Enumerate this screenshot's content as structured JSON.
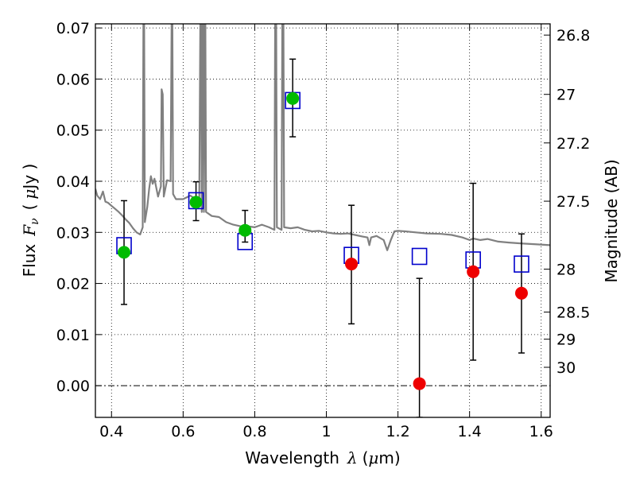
{
  "chart_data": {
    "type": "scatter",
    "title": "",
    "xlabel": {
      "prefix": "Wavelength",
      "symbol": "λ",
      "unit_open": "(",
      "unit_mu": "μ",
      "unit_rest": "m)"
    },
    "ylabel": {
      "prefix": "Flux",
      "symbol": "F",
      "subscript": "ν",
      "unit_open": "(",
      "unit_mu": "μ",
      "unit_rest": "Jy )"
    },
    "y2label": "Magnitude (AB)",
    "xlim": [
      0.355,
      1.625
    ],
    "ylim": [
      -0.0062,
      0.0708
    ],
    "grid": true,
    "x_ticks": [
      0.4,
      0.6,
      0.8,
      1.0,
      1.2,
      1.4,
      1.6
    ],
    "x_tick_labels": [
      "0.4",
      "0.6",
      "0.8",
      "1",
      "1.2",
      "1.4",
      "1.6"
    ],
    "y_ticks": [
      0.0,
      0.01,
      0.02,
      0.03,
      0.04,
      0.05,
      0.06,
      0.07
    ],
    "y_tick_labels": [
      "0.00",
      "0.01",
      "0.02",
      "0.03",
      "0.04",
      "0.05",
      "0.06",
      "0.07"
    ],
    "y2_ticks": [
      {
        "label": "26.8",
        "flux": 0.0686
      },
      {
        "label": "27",
        "flux": 0.057
      },
      {
        "label": "27.2",
        "flux": 0.0475
      },
      {
        "label": "27.5",
        "flux": 0.0361
      },
      {
        "label": "28",
        "flux": 0.0228
      },
      {
        "label": "28.5",
        "flux": 0.0144
      },
      {
        "label": "29",
        "flux": 0.0091
      },
      {
        "label": "30",
        "flux": 0.0036
      }
    ],
    "model_sed": {
      "color": "#808080",
      "points": [
        [
          0.355,
          0.0385
        ],
        [
          0.36,
          0.0372
        ],
        [
          0.368,
          0.0365
        ],
        [
          0.376,
          0.038
        ],
        [
          0.383,
          0.036
        ],
        [
          0.39,
          0.0358
        ],
        [
          0.4,
          0.0352
        ],
        [
          0.41,
          0.0346
        ],
        [
          0.42,
          0.034
        ],
        [
          0.43,
          0.0333
        ],
        [
          0.44,
          0.0325
        ],
        [
          0.45,
          0.0318
        ],
        [
          0.46,
          0.0308
        ],
        [
          0.47,
          0.03
        ],
        [
          0.48,
          0.0296
        ],
        [
          0.487,
          0.031
        ],
        [
          0.489,
          0.072
        ],
        [
          0.491,
          0.072
        ],
        [
          0.493,
          0.032
        ],
        [
          0.5,
          0.035
        ],
        [
          0.505,
          0.0385
        ],
        [
          0.51,
          0.041
        ],
        [
          0.515,
          0.0395
        ],
        [
          0.52,
          0.0405
        ],
        [
          0.53,
          0.037
        ],
        [
          0.538,
          0.039
        ],
        [
          0.54,
          0.058
        ],
        [
          0.543,
          0.057
        ],
        [
          0.546,
          0.037
        ],
        [
          0.555,
          0.0402
        ],
        [
          0.565,
          0.04
        ],
        [
          0.568,
          0.072
        ],
        [
          0.57,
          0.072
        ],
        [
          0.572,
          0.0375
        ],
        [
          0.58,
          0.0365
        ],
        [
          0.6,
          0.0365
        ],
        [
          0.62,
          0.0372
        ],
        [
          0.635,
          0.0365
        ],
        [
          0.645,
          0.035
        ],
        [
          0.648,
          0.072
        ],
        [
          0.65,
          0.072
        ],
        [
          0.652,
          0.034
        ],
        [
          0.654,
          0.072
        ],
        [
          0.656,
          0.072
        ],
        [
          0.658,
          0.034
        ],
        [
          0.66,
          0.072
        ],
        [
          0.662,
          0.072
        ],
        [
          0.664,
          0.034
        ],
        [
          0.68,
          0.0332
        ],
        [
          0.7,
          0.033
        ],
        [
          0.72,
          0.032
        ],
        [
          0.74,
          0.0315
        ],
        [
          0.76,
          0.0312
        ],
        [
          0.78,
          0.0312
        ],
        [
          0.8,
          0.031
        ],
        [
          0.82,
          0.0315
        ],
        [
          0.84,
          0.031
        ],
        [
          0.855,
          0.0305
        ],
        [
          0.857,
          0.072
        ],
        [
          0.86,
          0.072
        ],
        [
          0.862,
          0.031
        ],
        [
          0.875,
          0.0305
        ],
        [
          0.877,
          0.072
        ],
        [
          0.88,
          0.072
        ],
        [
          0.882,
          0.031
        ],
        [
          0.9,
          0.0308
        ],
        [
          0.92,
          0.031
        ],
        [
          0.94,
          0.0305
        ],
        [
          0.96,
          0.0302
        ],
        [
          0.98,
          0.0303
        ],
        [
          1.0,
          0.03
        ],
        [
          1.02,
          0.0298
        ],
        [
          1.04,
          0.0297
        ],
        [
          1.06,
          0.0298
        ],
        [
          1.08,
          0.0295
        ],
        [
          1.1,
          0.0292
        ],
        [
          1.115,
          0.029
        ],
        [
          1.12,
          0.0275
        ],
        [
          1.125,
          0.029
        ],
        [
          1.14,
          0.0293
        ],
        [
          1.16,
          0.0285
        ],
        [
          1.17,
          0.0265
        ],
        [
          1.18,
          0.0285
        ],
        [
          1.19,
          0.0302
        ],
        [
          1.2,
          0.0303
        ],
        [
          1.22,
          0.0302
        ],
        [
          1.25,
          0.03
        ],
        [
          1.28,
          0.0298
        ],
        [
          1.32,
          0.0297
        ],
        [
          1.35,
          0.0295
        ],
        [
          1.38,
          0.029
        ],
        [
          1.4,
          0.0285
        ],
        [
          1.41,
          0.0288
        ],
        [
          1.43,
          0.0285
        ],
        [
          1.45,
          0.0287
        ],
        [
          1.48,
          0.0282
        ],
        [
          1.51,
          0.028
        ],
        [
          1.55,
          0.0278
        ],
        [
          1.58,
          0.0277
        ],
        [
          1.625,
          0.0275
        ]
      ]
    },
    "series": [
      {
        "marker": "open-square",
        "color": "#0000cc",
        "points": [
          [
            0.435,
            0.0274
          ],
          [
            0.636,
            0.0362
          ],
          [
            0.773,
            0.0282
          ],
          [
            0.906,
            0.0558
          ],
          [
            1.07,
            0.0255
          ],
          [
            1.26,
            0.0253
          ],
          [
            1.41,
            0.0246
          ],
          [
            1.545,
            0.0238
          ]
        ]
      },
      {
        "marker": "circle",
        "color": "#00bb00",
        "points": [
          [
            0.435,
            0.0261
          ],
          [
            0.636,
            0.0359
          ],
          [
            0.773,
            0.0304
          ],
          [
            0.906,
            0.0562
          ]
        ],
        "yerr_low": [
          0.0159,
          0.0323,
          0.0281,
          0.0487
        ],
        "yerr_high": [
          0.0362,
          0.0399,
          0.0343,
          0.0639
        ]
      },
      {
        "marker": "circle",
        "color": "#ee0000",
        "points": [
          [
            1.07,
            0.0238
          ],
          [
            1.26,
            0.0004
          ],
          [
            1.41,
            0.0223
          ],
          [
            1.545,
            0.0181
          ]
        ],
        "yerr_low": [
          0.0121,
          -0.0062,
          0.005,
          0.0064
        ],
        "yerr_high": [
          0.0353,
          0.021,
          0.0396,
          0.0297
        ]
      }
    ]
  }
}
